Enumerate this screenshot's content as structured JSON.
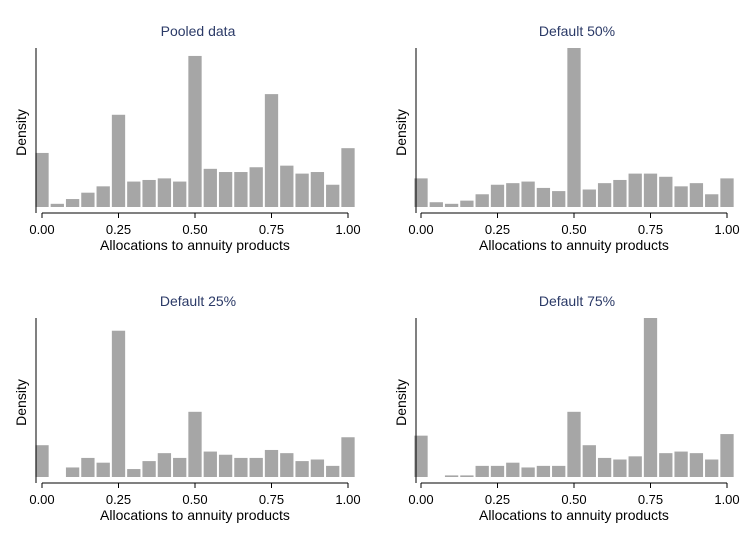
{
  "chart_data": [
    {
      "type": "bar",
      "title": "Pooled data",
      "xlabel": "Allocations to annuity products",
      "ylabel": "Density",
      "xlim": [
        0,
        1
      ],
      "ylim": [
        0,
        1
      ],
      "xticks": [
        "0.00",
        "0.25",
        "0.50",
        "0.75",
        "1.00"
      ],
      "x": [
        0.0,
        0.05,
        0.1,
        0.15,
        0.2,
        0.25,
        0.3,
        0.35,
        0.4,
        0.45,
        0.5,
        0.55,
        0.6,
        0.65,
        0.7,
        0.75,
        0.8,
        0.85,
        0.9,
        0.95,
        1.0
      ],
      "values": [
        0.34,
        0.02,
        0.05,
        0.09,
        0.13,
        0.58,
        0.16,
        0.17,
        0.18,
        0.16,
        0.95,
        0.24,
        0.22,
        0.22,
        0.25,
        0.71,
        0.26,
        0.21,
        0.22,
        0.14,
        0.37
      ]
    },
    {
      "type": "bar",
      "title": "Default 50%",
      "xlabel": "Allocations to annuity products",
      "ylabel": "Density",
      "xlim": [
        0,
        1
      ],
      "ylim": [
        0,
        1
      ],
      "xticks": [
        "0.00",
        "0.25",
        "0.50",
        "0.75",
        "1.00"
      ],
      "x": [
        0.0,
        0.05,
        0.1,
        0.15,
        0.2,
        0.25,
        0.3,
        0.35,
        0.4,
        0.45,
        0.5,
        0.55,
        0.6,
        0.65,
        0.7,
        0.75,
        0.8,
        0.85,
        0.9,
        0.95,
        1.0
      ],
      "values": [
        0.18,
        0.03,
        0.02,
        0.04,
        0.08,
        0.14,
        0.15,
        0.16,
        0.12,
        0.1,
        1.0,
        0.11,
        0.15,
        0.17,
        0.21,
        0.21,
        0.19,
        0.13,
        0.15,
        0.08,
        0.18
      ]
    },
    {
      "type": "bar",
      "title": "Default 25%",
      "xlabel": "Allocations to annuity products",
      "ylabel": "Density",
      "xlim": [
        0,
        1
      ],
      "ylim": [
        0,
        1
      ],
      "xticks": [
        "0.00",
        "0.25",
        "0.50",
        "0.75",
        "1.00"
      ],
      "x": [
        0.0,
        0.05,
        0.1,
        0.15,
        0.2,
        0.25,
        0.3,
        0.35,
        0.4,
        0.45,
        0.5,
        0.55,
        0.6,
        0.65,
        0.7,
        0.75,
        0.8,
        0.85,
        0.9,
        0.95,
        1.0
      ],
      "values": [
        0.2,
        0.0,
        0.06,
        0.12,
        0.09,
        0.92,
        0.05,
        0.1,
        0.15,
        0.12,
        0.41,
        0.16,
        0.14,
        0.12,
        0.12,
        0.17,
        0.15,
        0.1,
        0.11,
        0.07,
        0.25
      ]
    },
    {
      "type": "bar",
      "title": "Default 75%",
      "xlabel": "Allocations to annuity products",
      "ylabel": "Density",
      "xlim": [
        0,
        1
      ],
      "ylim": [
        0,
        1
      ],
      "xticks": [
        "0.00",
        "0.25",
        "0.50",
        "0.75",
        "1.00"
      ],
      "x": [
        0.0,
        0.05,
        0.1,
        0.15,
        0.2,
        0.25,
        0.3,
        0.35,
        0.4,
        0.45,
        0.5,
        0.55,
        0.6,
        0.65,
        0.7,
        0.75,
        0.8,
        0.85,
        0.9,
        0.95,
        1.0
      ],
      "values": [
        0.26,
        0.0,
        0.01,
        0.01,
        0.07,
        0.07,
        0.09,
        0.06,
        0.07,
        0.07,
        0.41,
        0.2,
        0.12,
        0.11,
        0.13,
        1.0,
        0.15,
        0.16,
        0.15,
        0.11,
        0.27
      ]
    }
  ],
  "colors": {
    "bar": "#a6a6a6",
    "title": "#2b3a67",
    "text": "#000000",
    "axis": "#000000"
  }
}
